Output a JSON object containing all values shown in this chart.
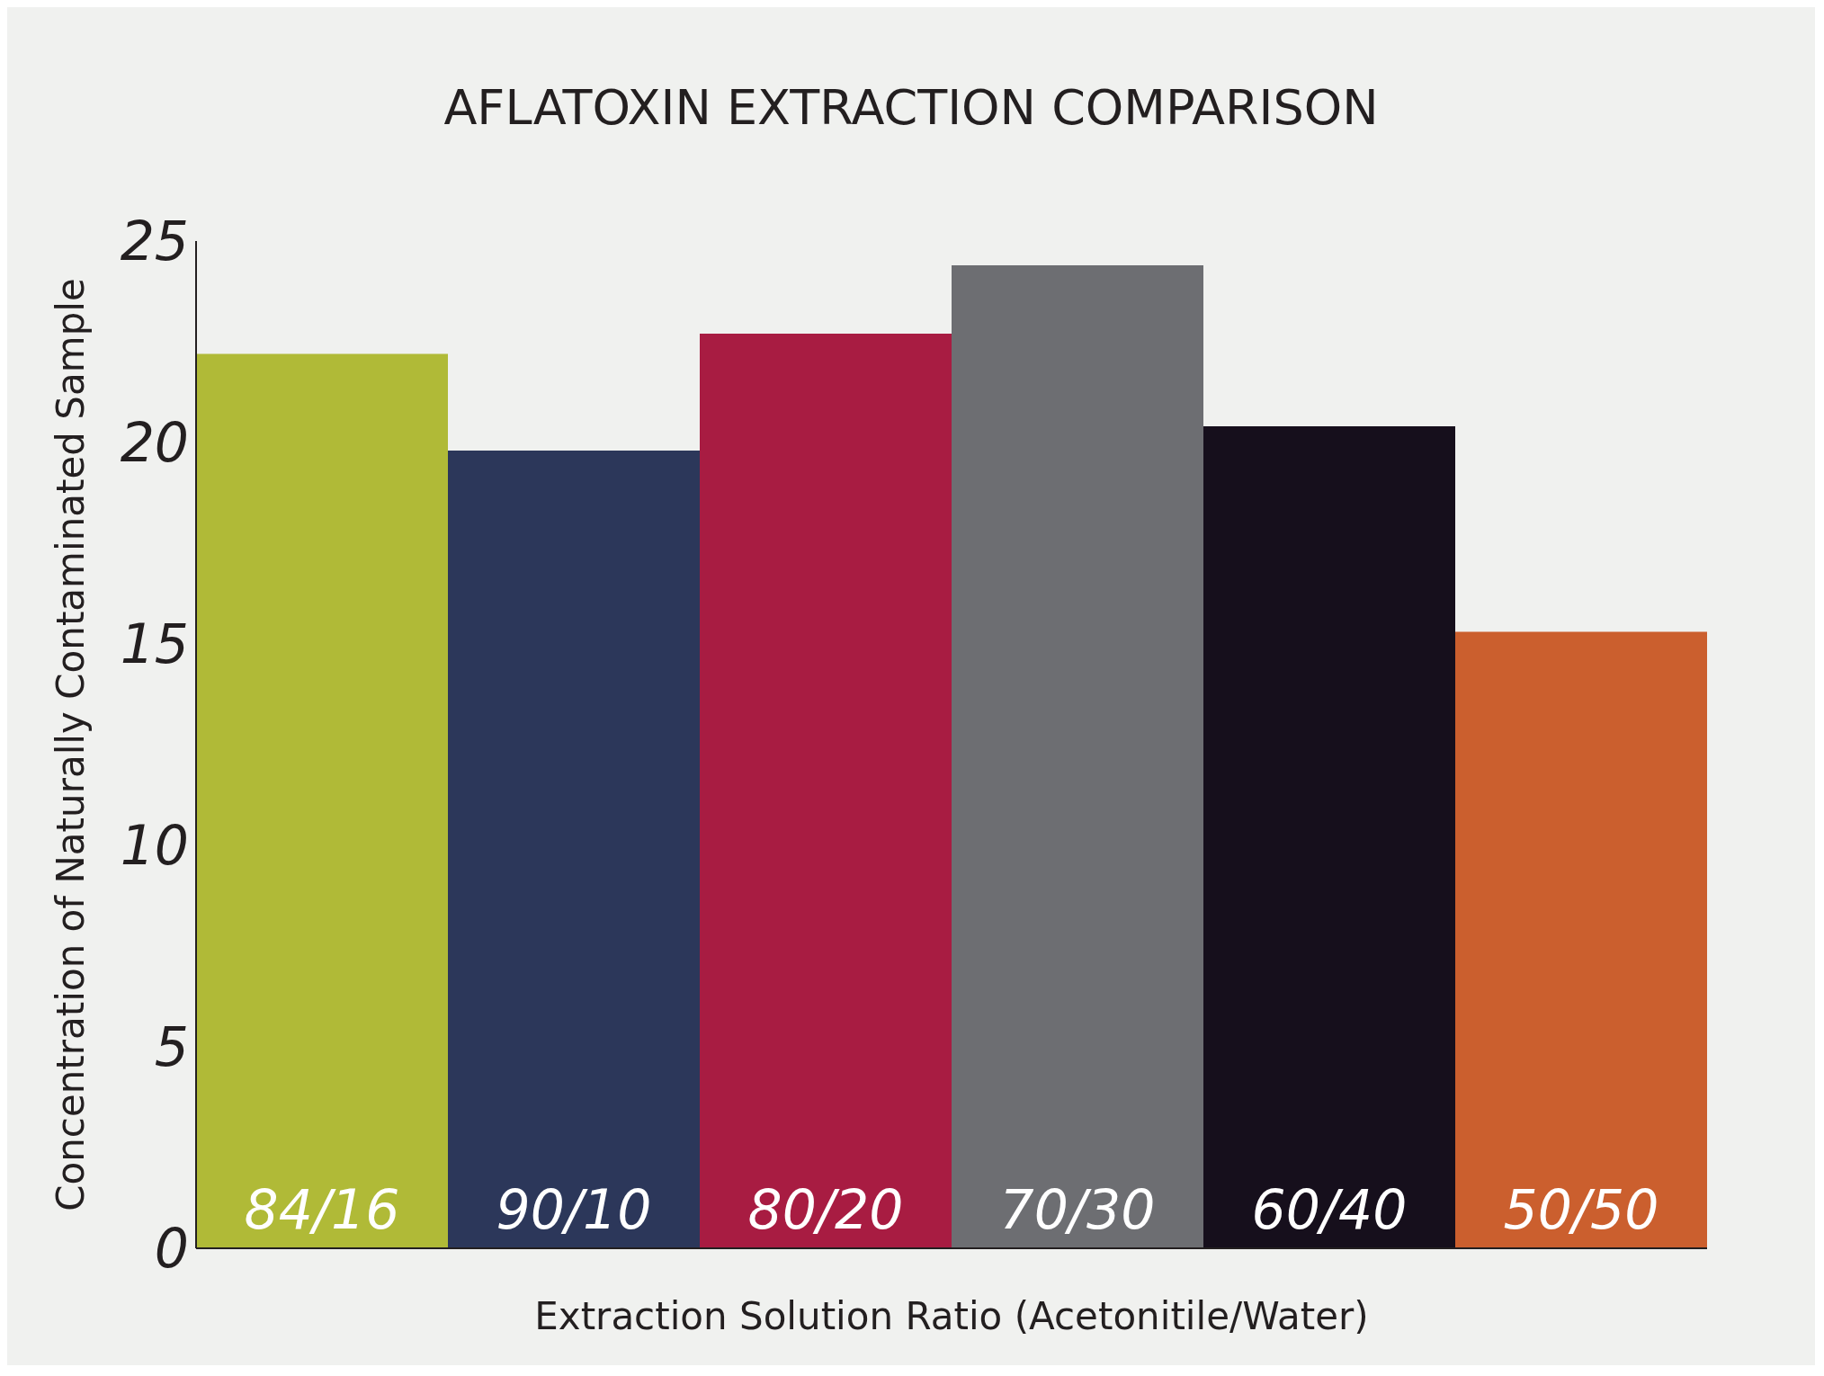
{
  "chart_data": {
    "type": "bar",
    "title": "AFLATOXIN EXTRACTION COMPARISON",
    "xlabel": "Extraction Solution Ratio (Acetonitile/Water)",
    "ylabel": "Concentration of Naturally Contaminated Sample",
    "categories": [
      "84/16",
      "90/10",
      "80/20",
      "70/30",
      "60/40",
      "50/50"
    ],
    "values": [
      22.2,
      19.8,
      22.7,
      24.4,
      20.4,
      15.3
    ],
    "colors": [
      "#b0ba37",
      "#2c375a",
      "#a81c42",
      "#6d6e72",
      "#160f1c",
      "#cb5f2e"
    ],
    "ylim": [
      0,
      25
    ],
    "yticks": [
      0,
      5,
      10,
      15,
      20,
      25
    ],
    "grid": false,
    "legend": false
  }
}
